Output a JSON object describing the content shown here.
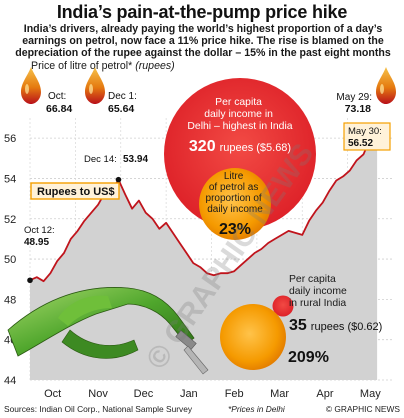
{
  "title": "India’s pain-at-the-pump price hike",
  "subtitle": "India’s drivers, already paying the world’s highest proportion of a day’s earnings on petrol, now face a 11% price hike. The rise is blamed on the depreciation of the rupee against the dollar – 15% in the past eight months",
  "price_label": "Price of litre of petrol*",
  "price_unit": "(rupees)",
  "colors": {
    "line": "#c0141c",
    "area": "#d2d2d2",
    "big_circle": "#e8232a",
    "orange_circle": "#f5a000",
    "drop_gold": "#f0a818",
    "drop_red": "#c82020",
    "tag_fill": "#fff2d9",
    "tag_border": "#f5a000"
  },
  "icons": [
    "oil-drop-icon",
    "petrol-pump-nozzle-icon"
  ],
  "drop_labels": [
    {
      "date": "Oct:",
      "value": "66.84"
    },
    {
      "date": "Dec 1:",
      "value": "65.64"
    },
    {
      "date": "May 29:",
      "value": "73.18"
    }
  ],
  "chart_data": {
    "type": "line",
    "title": "India’s pain-at-the-pump price hike",
    "x_tick_labels": [
      "Oct",
      "Nov",
      "Dec",
      "Jan",
      "Feb",
      "Mar",
      "Apr",
      "May"
    ],
    "y_tick_labels": [
      "44",
      "46",
      "48",
      "50",
      "52",
      "54",
      "56"
    ],
    "ylim": [
      44,
      57
    ],
    "grid": true,
    "series": [
      {
        "name": "Rupees to US$",
        "x": [
          0.0,
          0.15,
          0.3,
          0.45,
          0.6,
          0.75,
          0.9,
          1.05,
          1.2,
          1.35,
          1.5,
          1.65,
          1.8,
          1.95,
          2.1,
          2.25,
          2.4,
          2.55,
          2.7,
          2.85,
          3.0,
          3.15,
          3.3,
          3.45,
          3.6,
          3.75,
          3.9,
          4.05,
          4.2,
          4.35,
          4.5,
          4.65,
          4.8,
          4.95,
          5.1,
          5.25,
          5.4,
          5.55,
          5.7,
          5.85,
          6.0,
          6.15,
          6.3,
          6.45,
          6.6,
          6.75,
          6.9,
          7.05,
          7.2,
          7.35,
          7.5,
          7.65
        ],
        "values": [
          48.95,
          49.1,
          48.9,
          49.3,
          49.9,
          50.3,
          51.0,
          51.4,
          51.9,
          52.3,
          52.7,
          53.3,
          53.4,
          53.94,
          53.2,
          52.5,
          52.9,
          52.3,
          52.0,
          51.5,
          51.8,
          51.3,
          50.8,
          50.3,
          49.8,
          49.6,
          49.3,
          49.2,
          49.3,
          49.3,
          49.4,
          49.7,
          50.0,
          50.3,
          50.5,
          50.8,
          51.0,
          51.2,
          51.4,
          51.3,
          51.2,
          51.9,
          52.4,
          52.8,
          53.4,
          53.9,
          54.1,
          54.4,
          54.9,
          55.2,
          56.0,
          56.52
        ]
      }
    ],
    "annotations": [
      {
        "label": "Oct 12:",
        "value": "48.95"
      },
      {
        "label": "Dec 14:",
        "value": "53.94"
      },
      {
        "label": "May 30:",
        "value": "56.52"
      }
    ],
    "bubbles": [
      {
        "text": "Per capita daily income in Delhi – highest in India",
        "value": "320",
        "unit": "rupees",
        "usd": "($5.68)"
      },
      {
        "text": "Litre of petrol as proportion of daily income",
        "value": "23%"
      },
      {
        "text": "Per capita daily income in rural India",
        "value": "35",
        "unit": "rupees",
        "usd": "($0.62)"
      },
      {
        "value": "209%"
      }
    ]
  },
  "watermark": "© GRAPHIC NEWS",
  "footer": {
    "sources": "Sources: Indian Oil Corp., National Sample Survey",
    "note": "*Prices in Delhi",
    "credit": "© GRAPHIC NEWS"
  }
}
